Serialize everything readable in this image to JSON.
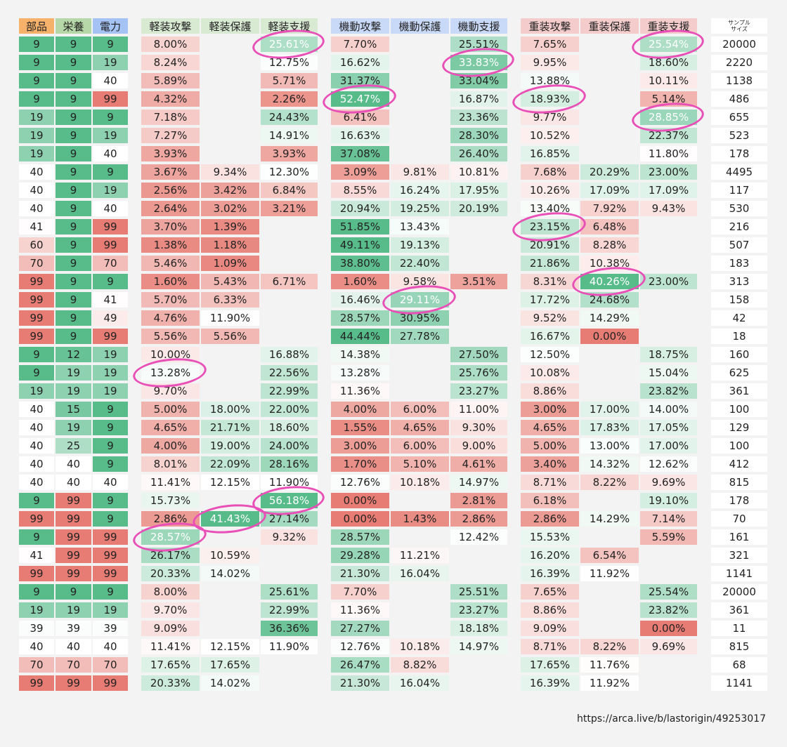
{
  "headers": [
    "部品",
    "栄養",
    "電力",
    "軽装攻撃",
    "軽装保護",
    "軽装支援",
    "機動攻撃",
    "機動保護",
    "機動支援",
    "重装攻撃",
    "重装保護",
    "重装支援"
  ],
  "sample_header": [
    "サンプル",
    "サイズ"
  ],
  "header_colors": [
    "#f6b26b",
    "#b6d7a8",
    "#a4c2f4",
    "#d9ead3",
    "#d9ead3",
    "#d9ead3",
    "#c9daf8",
    "#c9daf8",
    "#c9daf8",
    "#f4cccc",
    "#f4cccc",
    "#f4cccc"
  ],
  "rows": [
    [
      "9",
      "9",
      "9",
      "8.00%",
      "",
      "25.61%",
      "7.70%",
      "",
      "25.51%",
      "7.65%",
      "",
      "25.54%",
      "20000"
    ],
    [
      "9",
      "9",
      "19",
      "8.24%",
      "",
      "12.75%",
      "16.62%",
      "",
      "33.83%",
      "9.95%",
      "",
      "18.60%",
      "2220"
    ],
    [
      "9",
      "9",
      "40",
      "5.89%",
      "",
      "5.71%",
      "31.37%",
      "",
      "33.04%",
      "13.88%",
      "",
      "10.11%",
      "1138"
    ],
    [
      "9",
      "9",
      "99",
      "4.32%",
      "",
      "2.26%",
      "52.47%",
      "",
      "16.87%",
      "18.93%",
      "",
      "5.14%",
      "486"
    ],
    [
      "19",
      "9",
      "9",
      "7.18%",
      "",
      "24.43%",
      "6.41%",
      "",
      "23.36%",
      "9.77%",
      "",
      "28.85%",
      "655"
    ],
    [
      "19",
      "9",
      "19",
      "7.27%",
      "",
      "14.91%",
      "16.63%",
      "",
      "28.30%",
      "10.52%",
      "",
      "22.37%",
      "523"
    ],
    [
      "19",
      "9",
      "40",
      "3.93%",
      "",
      "3.93%",
      "37.08%",
      "",
      "26.40%",
      "16.85%",
      "",
      "11.80%",
      "178"
    ],
    [
      "40",
      "9",
      "9",
      "3.67%",
      "9.34%",
      "12.30%",
      "3.09%",
      "9.81%",
      "10.81%",
      "7.68%",
      "20.29%",
      "23.00%",
      "4495"
    ],
    [
      "40",
      "9",
      "19",
      "2.56%",
      "3.42%",
      "6.84%",
      "8.55%",
      "16.24%",
      "17.95%",
      "10.26%",
      "17.09%",
      "17.09%",
      "117"
    ],
    [
      "40",
      "9",
      "40",
      "2.64%",
      "3.02%",
      "3.21%",
      "20.94%",
      "19.25%",
      "20.19%",
      "13.40%",
      "7.92%",
      "9.43%",
      "530"
    ],
    [
      "41",
      "9",
      "99",
      "3.70%",
      "1.39%",
      "",
      "51.85%",
      "13.43%",
      "",
      "23.15%",
      "6.48%",
      "",
      "216"
    ],
    [
      "60",
      "9",
      "99",
      "1.38%",
      "1.18%",
      "",
      "49.11%",
      "19.13%",
      "",
      "20.91%",
      "8.28%",
      "",
      "507"
    ],
    [
      "70",
      "9",
      "70",
      "5.46%",
      "1.09%",
      "",
      "38.80%",
      "22.40%",
      "",
      "21.86%",
      "10.38%",
      "",
      "183"
    ],
    [
      "99",
      "9",
      "9",
      "1.60%",
      "5.43%",
      "6.71%",
      "1.60%",
      "9.58%",
      "3.51%",
      "8.31%",
      "40.26%",
      "23.00%",
      "313"
    ],
    [
      "99",
      "9",
      "41",
      "5.70%",
      "6.33%",
      "",
      "16.46%",
      "29.11%",
      "",
      "17.72%",
      "24.68%",
      "",
      "158"
    ],
    [
      "99",
      "9",
      "49",
      "4.76%",
      "11.90%",
      "",
      "28.57%",
      "30.95%",
      "",
      "9.52%",
      "14.29%",
      "",
      "42"
    ],
    [
      "99",
      "9",
      "99",
      "5.56%",
      "5.56%",
      "",
      "44.44%",
      "27.78%",
      "",
      "16.67%",
      "0.00%",
      "",
      "18"
    ],
    [
      "9",
      "12",
      "19",
      "10.00%",
      "",
      "16.88%",
      "14.38%",
      "",
      "27.50%",
      "12.50%",
      "",
      "18.75%",
      "160"
    ],
    [
      "9",
      "19",
      "19",
      "13.28%",
      "",
      "22.56%",
      "13.28%",
      "",
      "25.76%",
      "10.08%",
      "",
      "15.04%",
      "625"
    ],
    [
      "19",
      "19",
      "19",
      "9.70%",
      "",
      "22.99%",
      "11.36%",
      "",
      "23.27%",
      "8.86%",
      "",
      "23.82%",
      "361"
    ],
    [
      "40",
      "15",
      "9",
      "5.00%",
      "18.00%",
      "22.00%",
      "4.00%",
      "6.00%",
      "11.00%",
      "3.00%",
      "17.00%",
      "14.00%",
      "100"
    ],
    [
      "40",
      "19",
      "9",
      "4.65%",
      "21.71%",
      "18.60%",
      "1.55%",
      "4.65%",
      "9.30%",
      "4.65%",
      "17.83%",
      "17.05%",
      "129"
    ],
    [
      "40",
      "25",
      "9",
      "4.00%",
      "19.00%",
      "24.00%",
      "3.00%",
      "6.00%",
      "9.00%",
      "5.00%",
      "13.00%",
      "17.00%",
      "100"
    ],
    [
      "40",
      "40",
      "9",
      "8.01%",
      "22.09%",
      "28.16%",
      "1.70%",
      "5.10%",
      "4.61%",
      "3.40%",
      "14.32%",
      "12.62%",
      "412"
    ],
    [
      "40",
      "40",
      "40",
      "11.41%",
      "12.15%",
      "11.90%",
      "12.76%",
      "10.18%",
      "14.97%",
      "8.71%",
      "8.22%",
      "9.69%",
      "815"
    ],
    [
      "9",
      "99",
      "9",
      "15.73%",
      "",
      "56.18%",
      "0.00%",
      "",
      "2.81%",
      "6.18%",
      "",
      "19.10%",
      "178"
    ],
    [
      "99",
      "99",
      "9",
      "2.86%",
      "41.43%",
      "27.14%",
      "0.00%",
      "1.43%",
      "2.86%",
      "2.86%",
      "14.29%",
      "7.14%",
      "70"
    ],
    [
      "9",
      "99",
      "99",
      "28.57%",
      "",
      "9.32%",
      "28.57%",
      "",
      "12.42%",
      "15.53%",
      "",
      "5.59%",
      "161"
    ],
    [
      "41",
      "99",
      "99",
      "26.17%",
      "10.59%",
      "",
      "29.28%",
      "11.21%",
      "",
      "16.20%",
      "6.54%",
      "",
      "321"
    ],
    [
      "99",
      "99",
      "99",
      "20.33%",
      "14.02%",
      "",
      "21.30%",
      "16.04%",
      "",
      "16.39%",
      "11.92%",
      "",
      "1141"
    ],
    [
      "9",
      "9",
      "9",
      "8.00%",
      "",
      "25.61%",
      "7.70%",
      "",
      "25.51%",
      "7.65%",
      "",
      "25.54%",
      "20000"
    ],
    [
      "19",
      "19",
      "19",
      "9.70%",
      "",
      "22.99%",
      "11.36%",
      "",
      "23.27%",
      "8.86%",
      "",
      "23.82%",
      "361"
    ],
    [
      "39",
      "39",
      "39",
      "9.09%",
      "",
      "36.36%",
      "27.27%",
      "",
      "18.18%",
      "9.09%",
      "",
      "0.00%",
      "11"
    ],
    [
      "40",
      "40",
      "40",
      "11.41%",
      "12.15%",
      "11.90%",
      "12.76%",
      "10.18%",
      "14.97%",
      "8.71%",
      "8.22%",
      "9.69%",
      "815"
    ],
    [
      "70",
      "70",
      "70",
      "17.65%",
      "17.65%",
      "",
      "26.47%",
      "8.82%",
      "",
      "17.65%",
      "11.76%",
      "",
      "68"
    ],
    [
      "99",
      "99",
      "99",
      "20.33%",
      "14.02%",
      "",
      "21.30%",
      "16.04%",
      "",
      "16.39%",
      "11.92%",
      "",
      "1141"
    ]
  ],
  "highlights": [
    {
      "row": 0,
      "col": 5
    },
    {
      "row": 0,
      "col": 11
    },
    {
      "row": 1,
      "col": 8
    },
    {
      "row": 3,
      "col": 6
    },
    {
      "row": 3,
      "col": 9
    },
    {
      "row": 4,
      "col": 11
    },
    {
      "row": 10,
      "col": 9
    },
    {
      "row": 13,
      "col": 10
    },
    {
      "row": 14,
      "col": 7
    },
    {
      "row": 18,
      "col": 3
    },
    {
      "row": 25,
      "col": 5
    },
    {
      "row": 26,
      "col": 4
    },
    {
      "row": 27,
      "col": 3
    }
  ],
  "source_url": "https://arca.live/b/lastorigin/49253017"
}
